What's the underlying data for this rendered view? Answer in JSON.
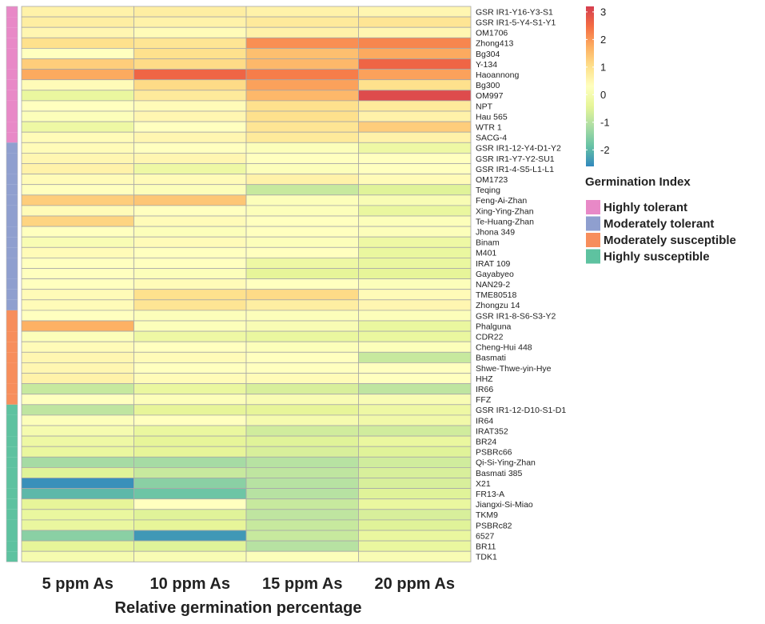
{
  "chart_data": {
    "type": "heatmap",
    "xlabel": "Relative germination percentage",
    "columns": [
      "5 ppm As",
      "10 ppm As",
      "15 ppm As",
      "20 ppm As"
    ],
    "rows": [
      {
        "name": "GSR IR1-Y16-Y3-S1",
        "group": "Highly tolerant",
        "values": [
          0.6,
          0.7,
          0.6,
          0.5
        ]
      },
      {
        "name": "GSR IR1-5-Y4-S1-Y1",
        "group": "Highly tolerant",
        "values": [
          0.7,
          0.6,
          0.8,
          0.9
        ]
      },
      {
        "name": "OM1706",
        "group": "Highly tolerant",
        "values": [
          0.5,
          0.4,
          0.6,
          0.5
        ]
      },
      {
        "name": "Zhong413",
        "group": "Highly tolerant",
        "values": [
          1.0,
          0.9,
          2.1,
          2.2
        ]
      },
      {
        "name": "Bg304",
        "group": "Highly tolerant",
        "values": [
          0.3,
          1.0,
          1.5,
          1.8
        ]
      },
      {
        "name": "Y-134",
        "group": "Highly tolerant",
        "values": [
          1.3,
          1.1,
          1.6,
          2.6
        ]
      },
      {
        "name": "Haoannong",
        "group": "Highly tolerant",
        "values": [
          1.8,
          2.6,
          2.3,
          1.9
        ]
      },
      {
        "name": "Bg300",
        "group": "Highly tolerant",
        "values": [
          0.4,
          1.1,
          1.9,
          1.0
        ]
      },
      {
        "name": "OM997",
        "group": "Highly tolerant",
        "values": [
          -0.3,
          0.8,
          1.6,
          3.0
        ]
      },
      {
        "name": "NPT",
        "group": "Highly tolerant",
        "values": [
          0.3,
          0.4,
          1.0,
          0.8
        ]
      },
      {
        "name": "Hau 565",
        "group": "Highly tolerant",
        "values": [
          0.2,
          0.5,
          1.0,
          0.6
        ]
      },
      {
        "name": "WTR 1",
        "group": "Highly tolerant",
        "values": [
          -0.2,
          0.3,
          0.9,
          1.3
        ]
      },
      {
        "name": "SACG-4",
        "group": "Highly tolerant",
        "values": [
          0.4,
          0.5,
          0.8,
          0.6
        ]
      },
      {
        "name": "GSR IR1-12-Y4-D1-Y2",
        "group": "Moderately tolerant",
        "values": [
          0.4,
          0.3,
          0.2,
          -0.2
        ]
      },
      {
        "name": "GSR IR1-Y7-Y2-SU1",
        "group": "Moderately tolerant",
        "values": [
          0.5,
          0.5,
          0.3,
          0.3
        ]
      },
      {
        "name": "GSR IR1-4-S5-L1-L1",
        "group": "Moderately tolerant",
        "values": [
          0.6,
          -0.2,
          0.2,
          0.3
        ]
      },
      {
        "name": "OM1723",
        "group": "Moderately tolerant",
        "values": [
          0.4,
          0.4,
          0.6,
          0.4
        ]
      },
      {
        "name": "Teqing",
        "group": "Moderately tolerant",
        "values": [
          0.3,
          0.2,
          -0.8,
          -0.5
        ]
      },
      {
        "name": "Feng-Ai-Zhan",
        "group": "Moderately tolerant",
        "values": [
          1.3,
          1.4,
          0.2,
          0.1
        ]
      },
      {
        "name": "Xing-Ying-Zhan",
        "group": "Moderately tolerant",
        "values": [
          0.4,
          0.3,
          0.2,
          -0.3
        ]
      },
      {
        "name": "Te-Huang-Zhan",
        "group": "Moderately tolerant",
        "values": [
          1.2,
          0.4,
          0.3,
          0.2
        ]
      },
      {
        "name": "Jhona 349",
        "group": "Moderately tolerant",
        "values": [
          0.3,
          0.2,
          0.3,
          0.2
        ]
      },
      {
        "name": "Binam",
        "group": "Moderately tolerant",
        "values": [
          0.1,
          0.4,
          0.2,
          -0.2
        ]
      },
      {
        "name": "M401",
        "group": "Moderately tolerant",
        "values": [
          0.4,
          0.3,
          0.3,
          -0.3
        ]
      },
      {
        "name": "IRAT 109",
        "group": "Moderately tolerant",
        "values": [
          0.3,
          0.3,
          -0.2,
          -0.3
        ]
      },
      {
        "name": "Gayabyeo",
        "group": "Moderately tolerant",
        "values": [
          0.3,
          0.2,
          -0.4,
          -0.4
        ]
      },
      {
        "name": "NAN29-2",
        "group": "Moderately tolerant",
        "values": [
          0.3,
          0.4,
          0.3,
          0.2
        ]
      },
      {
        "name": "TME80518",
        "group": "Moderately tolerant",
        "values": [
          0.4,
          1.0,
          1.1,
          0.4
        ]
      },
      {
        "name": "Zhongzu 14",
        "group": "Moderately tolerant",
        "values": [
          0.4,
          0.9,
          0.7,
          0.5
        ]
      },
      {
        "name": "GSR IR1-8-S6-S3-Y2",
        "group": "Moderately susceptible",
        "values": [
          0.3,
          0.2,
          0.2,
          0.2
        ]
      },
      {
        "name": "Phalguna",
        "group": "Moderately susceptible",
        "values": [
          1.7,
          0.2,
          0.1,
          -0.3
        ]
      },
      {
        "name": "CDR22",
        "group": "Moderately susceptible",
        "values": [
          0.2,
          -0.2,
          -0.3,
          -0.3
        ]
      },
      {
        "name": "Cheng-Hui 448",
        "group": "Moderately susceptible",
        "values": [
          0.4,
          0.3,
          0.2,
          0.2
        ]
      },
      {
        "name": "Basmati",
        "group": "Moderately susceptible",
        "values": [
          0.5,
          0.4,
          0.3,
          -0.8
        ]
      },
      {
        "name": "Shwe-Thwe-yin-Hye",
        "group": "Moderately susceptible",
        "values": [
          0.5,
          0.3,
          0.3,
          0.3
        ]
      },
      {
        "name": "HHZ",
        "group": "Moderately susceptible",
        "values": [
          0.6,
          0.4,
          0.4,
          0.3
        ]
      },
      {
        "name": "IR66",
        "group": "Moderately susceptible",
        "values": [
          -0.8,
          -0.3,
          -0.6,
          -0.9
        ]
      },
      {
        "name": "FFZ",
        "group": "Moderately susceptible",
        "values": [
          0.3,
          0.2,
          0.1,
          0.1
        ]
      },
      {
        "name": "GSR IR1-12-D10-S1-D1",
        "group": "Highly susceptible",
        "values": [
          -0.9,
          -0.4,
          -0.4,
          -0.2
        ]
      },
      {
        "name": "IR64",
        "group": "Highly susceptible",
        "values": [
          0.2,
          0.3,
          0.0,
          -0.1
        ]
      },
      {
        "name": "IRAT352",
        "group": "Highly susceptible",
        "values": [
          0.0,
          -0.3,
          -0.7,
          -0.7
        ]
      },
      {
        "name": "BR24",
        "group": "Highly susceptible",
        "values": [
          -0.2,
          -0.4,
          -0.5,
          -0.3
        ]
      },
      {
        "name": "PSBRc66",
        "group": "Highly susceptible",
        "values": [
          -0.3,
          -0.4,
          -0.6,
          -0.5
        ]
      },
      {
        "name": "Qi-Si-Ying-Zhan",
        "group": "Highly susceptible",
        "values": [
          -1.2,
          -1.2,
          -1.0,
          -0.7
        ]
      },
      {
        "name": "Basmati 385",
        "group": "Highly susceptible",
        "values": [
          -0.5,
          -0.8,
          -0.9,
          -0.6
        ]
      },
      {
        "name": "X21",
        "group": "Highly susceptible",
        "values": [
          -2.5,
          -1.5,
          -1.0,
          -0.6
        ]
      },
      {
        "name": "FR13-A",
        "group": "Highly susceptible",
        "values": [
          -2.0,
          -1.8,
          -1.0,
          -0.5
        ]
      },
      {
        "name": "Jiangxi-Si-Miao",
        "group": "Highly susceptible",
        "values": [
          -0.4,
          0.3,
          -0.8,
          -0.3
        ]
      },
      {
        "name": "TKM9",
        "group": "Highly susceptible",
        "values": [
          -0.3,
          -0.5,
          -0.9,
          -0.6
        ]
      },
      {
        "name": "PSBRc82",
        "group": "Highly susceptible",
        "values": [
          -0.3,
          -0.4,
          -0.8,
          -0.5
        ]
      },
      {
        "name": "6527",
        "group": "Highly susceptible",
        "values": [
          -1.5,
          -2.4,
          -0.8,
          -0.3
        ]
      },
      {
        "name": "BR11",
        "group": "Highly susceptible",
        "values": [
          -0.4,
          -0.5,
          -1.0,
          -0.3
        ]
      },
      {
        "name": "TDK1",
        "group": "Highly susceptible",
        "values": [
          0.0,
          0.1,
          0.2,
          0.1
        ]
      }
    ],
    "color_scale": {
      "range": [
        -2.6,
        3.2
      ],
      "ticks": [
        3,
        2,
        1,
        0,
        -1,
        -2
      ],
      "colors": [
        "#3288bd",
        "#66c2a5",
        "#abdda4",
        "#e6f598",
        "#ffffbf",
        "#fee08b",
        "#fdae61",
        "#f46d43",
        "#d53e4f"
      ]
    },
    "annotation": {
      "title": "Germination Index",
      "groups": [
        {
          "label": "Highly tolerant",
          "color": "#e889c7"
        },
        {
          "label": "Moderately tolerant",
          "color": "#8f9fcf"
        },
        {
          "label": "Moderately susceptible",
          "color": "#f78e5c"
        },
        {
          "label": "Highly susceptible",
          "color": "#5ec2a0"
        }
      ]
    }
  }
}
